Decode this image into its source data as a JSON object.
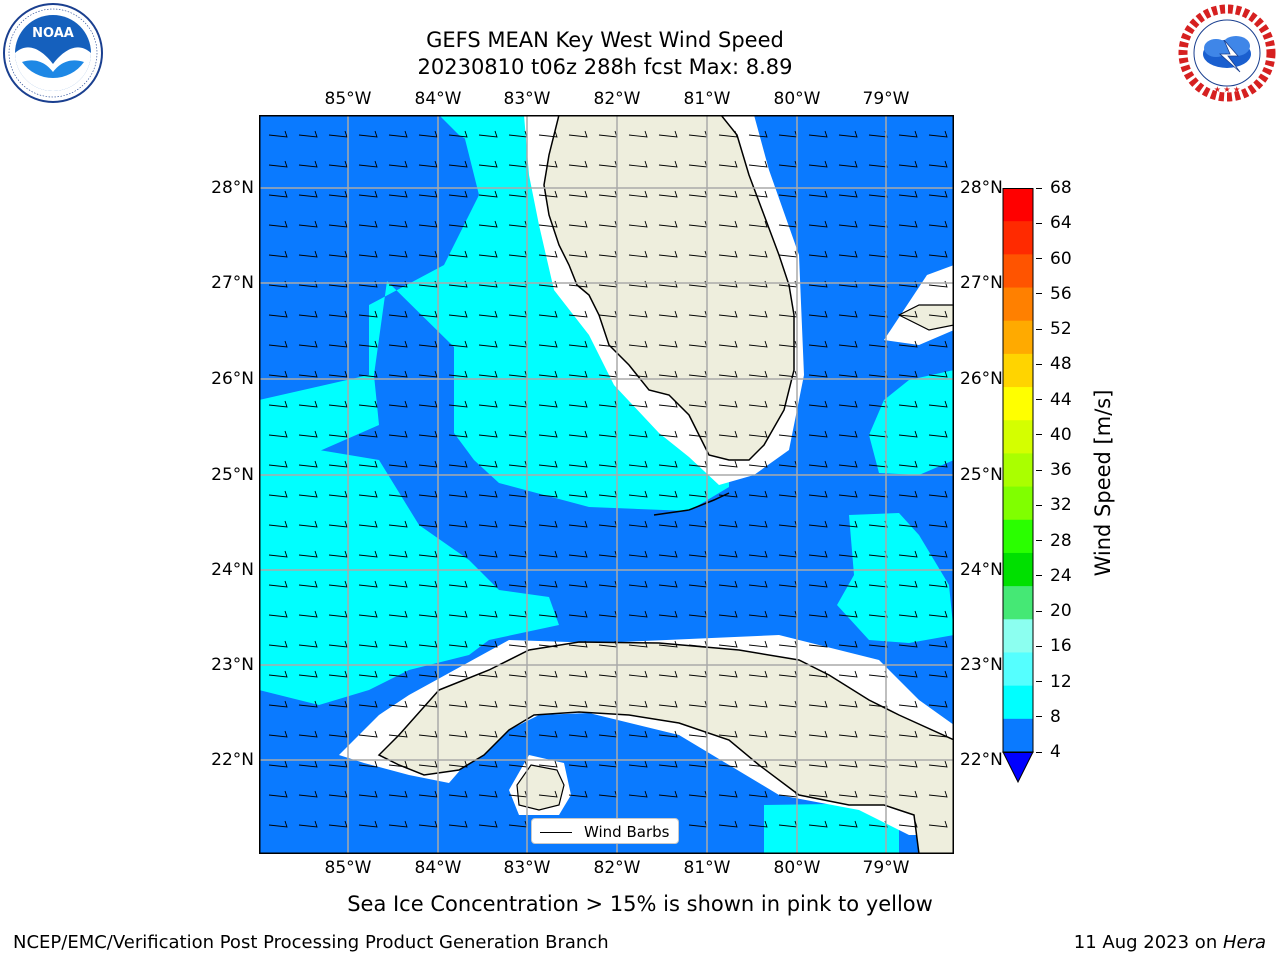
{
  "header": {
    "title_line1": "GEFS MEAN Key West Wind Speed",
    "title_line2": "20230810 t06z 288h fcst   Max: 8.89"
  },
  "logos": {
    "left": {
      "name": "noaa-logo",
      "text": "NOAA",
      "ring_text": "NATIONAL OCEANIC AND ATMOSPHERIC ADMINISTRATION · U.S. DEPARTMENT OF COMMERCE"
    },
    "right": {
      "name": "nws-logo",
      "ring_text": "NATIONAL WEATHER SERVICE"
    }
  },
  "map": {
    "lon_labels": [
      "85°W",
      "84°W",
      "83°W",
      "82°W",
      "81°W",
      "80°W",
      "79°W"
    ],
    "lat_labels": [
      "28°N",
      "27°N",
      "26°N",
      "25°N",
      "24°N",
      "23°N",
      "22°N"
    ],
    "legend_label": "Wind Barbs",
    "colors": {
      "ocean_dark": "#0a7aff",
      "ocean_light": "#00ffff",
      "land": "#eeeedd",
      "grid": "#aaaaaa"
    }
  },
  "colorbar": {
    "label": "Wind Speed [m/s]",
    "ticks": [
      "68",
      "64",
      "60",
      "56",
      "52",
      "48",
      "44",
      "40",
      "36",
      "32",
      "28",
      "24",
      "20",
      "16",
      "12",
      "8",
      "4"
    ],
    "colors": [
      "#ff0000",
      "#ff2a00",
      "#ff5400",
      "#ff8000",
      "#ffaa00",
      "#ffd400",
      "#ffff00",
      "#d4ff00",
      "#aaff00",
      "#80ff00",
      "#2aff00",
      "#00e000",
      "#45e875",
      "#8cfff0",
      "#55ffff",
      "#00ffff",
      "#0a7aff"
    ],
    "under_color": "#0000ff"
  },
  "captions": {
    "sea_ice": "Sea Ice Concentration > 15% is shown in pink to yellow",
    "credit": "NCEP/EMC/Verification Post Processing Product Generation Branch",
    "date_prefix": "11 Aug 2023 on ",
    "date_host": "Hera"
  }
}
